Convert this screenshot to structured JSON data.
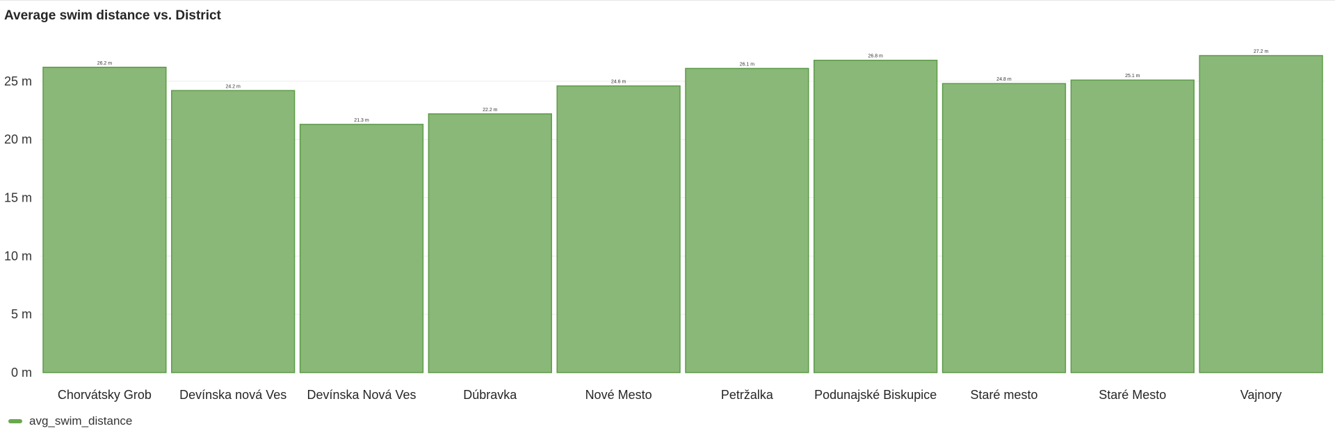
{
  "chart_data": {
    "type": "bar",
    "title": "Average swim distance vs. District",
    "categories": [
      "Chorvátsky Grob",
      "Devínska nová Ves",
      "Devínska Nová Ves",
      "Dúbravka",
      "Nové Mesto",
      "Petržalka",
      "Podunajské Biskupice",
      "Staré mesto",
      "Staré Mesto",
      "Vajnory"
    ],
    "series": [
      {
        "name": "avg_swim_distance",
        "values": [
          26.2,
          24.2,
          21.3,
          22.2,
          24.6,
          26.1,
          26.8,
          24.8,
          25.1,
          27.2
        ],
        "value_labels": [
          "26.2 m",
          "24.2 m",
          "21.3 m",
          "22.2 m",
          "24.6 m",
          "26.1 m",
          "26.8 m",
          "24.8 m",
          "25.1 m",
          "27.2 m"
        ]
      }
    ],
    "ylim": [
      0,
      27.2
    ],
    "yticks": [
      0,
      5,
      10,
      15,
      20,
      25
    ],
    "ytick_labels": [
      "0 m",
      "5 m",
      "10 m",
      "15 m",
      "20 m",
      "25 m"
    ],
    "grid": true,
    "legend": "bottom-left",
    "colors": {
      "bar_fill": "#8ab878",
      "bar_stroke": "#5c9a48",
      "legend": "#6aa84f",
      "grid": "#ececec"
    }
  }
}
